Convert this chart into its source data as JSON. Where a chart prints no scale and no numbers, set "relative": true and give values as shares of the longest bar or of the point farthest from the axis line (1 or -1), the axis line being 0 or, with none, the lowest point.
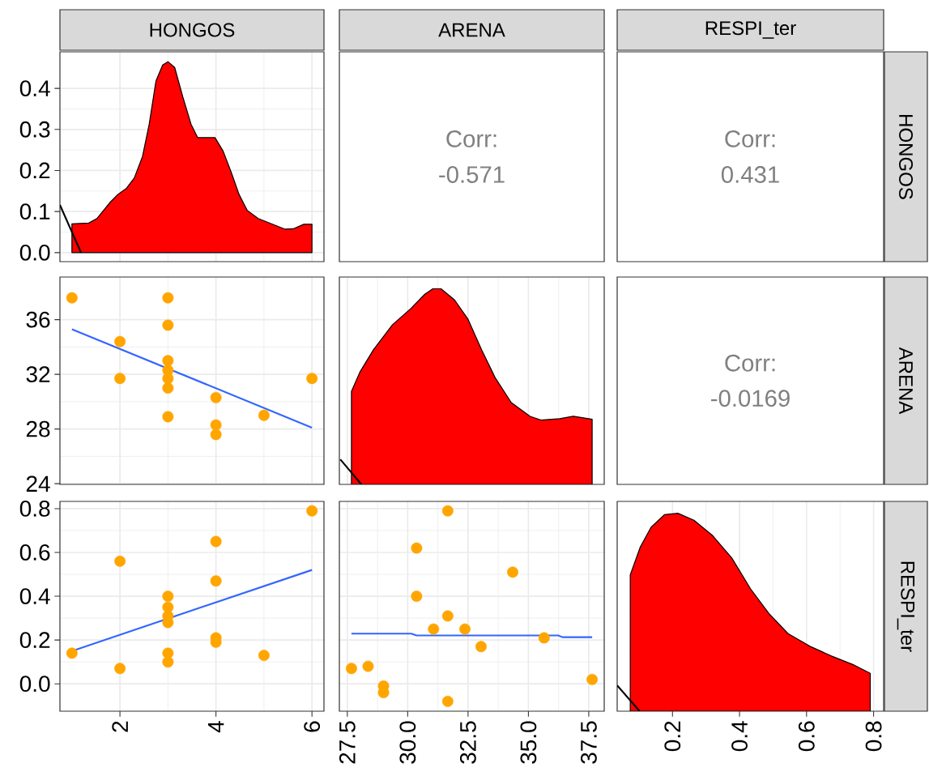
{
  "chart_data": [
    {
      "type": "area",
      "title": "HONGOS",
      "xlim": [
        0.75,
        6.25
      ],
      "xticks": [
        2,
        4,
        6
      ],
      "ylim": [
        -0.022,
        0.489
      ],
      "yticks": [
        {
          "value": 0,
          "label": "0.0"
        },
        0.1,
        0.2,
        0.3,
        0.4
      ],
      "grid": true,
      "tick_labels": "y",
      "series": [
        {
          "type": "area",
          "color": "#ff0000",
          "x": [
            1.0,
            1.35,
            1.52,
            1.8,
            1.96,
            2.13,
            2.3,
            2.47,
            2.61,
            2.75,
            2.89,
            3.0,
            3.14,
            3.31,
            3.48,
            3.62,
            3.98,
            4.15,
            4.32,
            4.48,
            4.65,
            4.88,
            5.16,
            5.44,
            5.61,
            5.83,
            6.0
          ],
          "values": [
            0.07,
            0.072,
            0.083,
            0.123,
            0.142,
            0.156,
            0.182,
            0.234,
            0.313,
            0.418,
            0.457,
            0.465,
            0.451,
            0.379,
            0.313,
            0.28,
            0.28,
            0.247,
            0.195,
            0.142,
            0.103,
            0.083,
            0.07,
            0.057,
            0.058,
            0.069,
            0.069
          ]
        },
        {
          "type": "line",
          "color": "#000000",
          "x": [
            0.75,
            1.19
          ],
          "values": [
            0.116,
            0
          ]
        }
      ]
    },
    {
      "type": "other",
      "title": "ARENA",
      "annotations": [
        "Corr:",
        "-0.571"
      ]
    },
    {
      "type": "other",
      "title": "RESPI_ter",
      "y2label": "HONGOS",
      "annotations": [
        "Corr:",
        "0.431"
      ]
    },
    {
      "type": "scatter",
      "xlim": [
        0.75,
        6.25
      ],
      "xticks": [
        2,
        4,
        6
      ],
      "ylim": [
        23.95,
        39.12
      ],
      "yticks": [
        24,
        28,
        32,
        36
      ],
      "grid": true,
      "tick_labels": "y",
      "series": [
        {
          "type": "scatter",
          "marker": "circle",
          "color": "#ffa500",
          "x": [
            1,
            2,
            2,
            3,
            3,
            3,
            3,
            3,
            3,
            3,
            4,
            4,
            4,
            5,
            6
          ],
          "values": [
            37.6,
            34.4,
            31.7,
            37.6,
            35.6,
            33.0,
            32.3,
            31.7,
            31.0,
            28.9,
            30.3,
            28.3,
            27.6,
            29.0,
            31.7
          ]
        },
        {
          "type": "line",
          "color": "#3366ff",
          "x": [
            1,
            6
          ],
          "values": [
            35.3,
            28.1
          ]
        }
      ]
    },
    {
      "type": "area",
      "relative": true,
      "xlim": [
        27.17,
        38.14
      ],
      "xticks": [
        27.5,
        30,
        32.5,
        35,
        37.5
      ],
      "grid": true,
      "tick_labels": false,
      "series": [
        {
          "type": "area",
          "color": "#ff0000",
          "x": [
            27.67,
            28.02,
            28.58,
            29.37,
            30.15,
            30.71,
            31.04,
            31.38,
            31.94,
            32.5,
            33.06,
            33.62,
            34.29,
            35.07,
            35.52,
            36.3,
            36.86,
            37.64
          ],
          "values": [
            0.475,
            0.574,
            0.688,
            0.816,
            0.901,
            0.972,
            1.0,
            1.0,
            0.943,
            0.844,
            0.688,
            0.546,
            0.418,
            0.348,
            0.329,
            0.336,
            0.348,
            0.333
          ]
        },
        {
          "type": "line",
          "color": "#000000",
          "x": [
            27.21,
            28.08
          ],
          "values": [
            0.128,
            0
          ]
        }
      ]
    },
    {
      "type": "other",
      "y2label": "ARENA",
      "annotations": [
        "Corr:",
        "-0.0169"
      ]
    },
    {
      "type": "scatter",
      "xlim": [
        0.75,
        6.25
      ],
      "xticks": [
        2,
        4,
        6
      ],
      "ylim": [
        -0.125,
        0.833
      ],
      "yticks": [
        {
          "value": 0,
          "label": "0.0"
        },
        0.2,
        0.4,
        0.6,
        0.8
      ],
      "grid": true,
      "series": [
        {
          "type": "scatter",
          "marker": "circle",
          "color": "#ffa500",
          "x": [
            1,
            2,
            2,
            3,
            3,
            3,
            3,
            3,
            3,
            4,
            4,
            4,
            4,
            5,
            6
          ],
          "values": [
            0.14,
            0.56,
            0.07,
            0.4,
            0.35,
            0.31,
            0.28,
            0.14,
            0.1,
            0.65,
            0.47,
            0.21,
            0.19,
            0.13,
            0.79
          ]
        },
        {
          "type": "line",
          "color": "#3366ff",
          "x": [
            1,
            6
          ],
          "values": [
            0.15,
            0.52
          ]
        }
      ]
    },
    {
      "type": "scatter",
      "xlim": [
        27.17,
        38.14
      ],
      "xticks": [
        {
          "value": 27.5,
          "label": "27.5"
        },
        {
          "value": 30,
          "label": "30.0"
        },
        {
          "value": 32.5,
          "label": "32.5"
        },
        {
          "value": 35,
          "label": "35.0"
        },
        {
          "value": 37.5,
          "label": "37.5"
        }
      ],
      "ylim": [
        -0.125,
        0.833
      ],
      "yticks": [
        0,
        0.2,
        0.4,
        0.6,
        0.8
      ],
      "grid": true,
      "tick_labels": "x",
      "series": [
        {
          "type": "scatter",
          "marker": "circle",
          "color": "#ffa500",
          "x": [
            27.67,
            28.36,
            29.0,
            29.0,
            30.37,
            30.37,
            31.07,
            31.66,
            31.66,
            31.66,
            32.37,
            33.04,
            34.35,
            35.65,
            37.64
          ],
          "values": [
            0.07,
            0.08,
            -0.01,
            -0.04,
            0.62,
            0.4,
            0.25,
            0.79,
            0.31,
            -0.08,
            0.25,
            0.17,
            0.51,
            0.21,
            0.02
          ]
        },
        {
          "type": "line",
          "color": "#3366ff",
          "x": [
            27.67,
            30.15,
            30.37,
            36.24,
            36.41,
            37.64
          ],
          "values": [
            0.229,
            0.229,
            0.221,
            0.221,
            0.213,
            0.213
          ]
        }
      ]
    },
    {
      "type": "area",
      "relative": true,
      "y2label": "RESPI_ter",
      "xlim": [
        0.035,
        0.83
      ],
      "xticks": [
        0.2,
        0.4,
        0.6,
        0.8
      ],
      "grid": true,
      "tick_labels": "x",
      "series": [
        {
          "type": "area",
          "color": "#ff0000",
          "x": [
            0.074,
            0.104,
            0.136,
            0.176,
            0.216,
            0.264,
            0.32,
            0.377,
            0.433,
            0.489,
            0.545,
            0.61,
            0.674,
            0.738,
            0.79
          ],
          "values": [
            0.689,
            0.83,
            0.929,
            0.993,
            1.0,
            0.965,
            0.887,
            0.774,
            0.618,
            0.491,
            0.392,
            0.328,
            0.279,
            0.236,
            0.191
          ]
        },
        {
          "type": "line",
          "color": "#000000",
          "x": [
            0.035,
            0.102
          ],
          "values": [
            0.13,
            0
          ]
        }
      ]
    }
  ]
}
